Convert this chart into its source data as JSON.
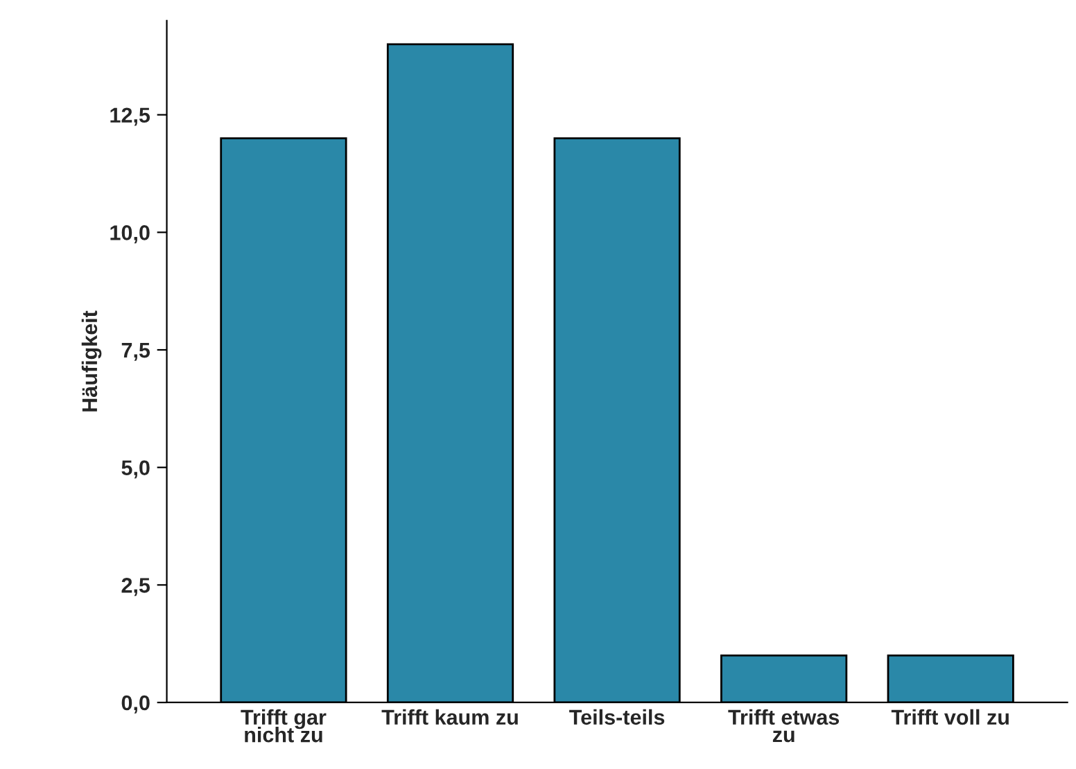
{
  "chart_data": {
    "type": "bar",
    "ylabel": "Häufigkeit",
    "categories": [
      "Trifft gar\nnicht zu",
      "Trifft kaum zu",
      "Teils-teils",
      "Trifft etwas\nzu",
      "Trifft voll zu"
    ],
    "values": [
      12,
      14,
      12,
      1,
      1
    ],
    "color": "#2a88a8",
    "ylim": [
      0,
      14.5
    ],
    "yticks": [
      {
        "value": 0,
        "label": "0,0"
      },
      {
        "value": 2.5,
        "label": "2,5"
      },
      {
        "value": 5,
        "label": "5,0"
      },
      {
        "value": 7.5,
        "label": "7,5"
      },
      {
        "value": 10,
        "label": "10,0"
      },
      {
        "value": 12.5,
        "label": "12,5"
      }
    ],
    "grid": false,
    "legend": false
  }
}
